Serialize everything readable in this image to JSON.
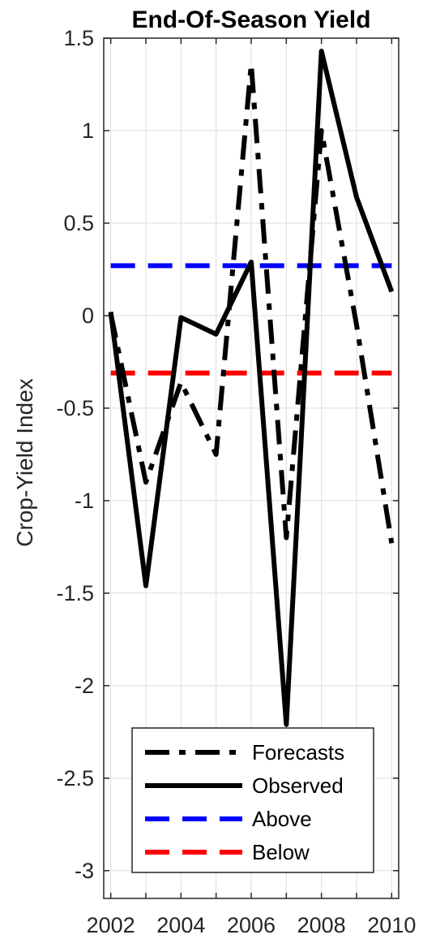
{
  "chart_data": {
    "type": "line",
    "title": "End-Of-Season Yield",
    "xlabel": "",
    "ylabel": "Crop-Yield Index",
    "xlim": [
      2001.8,
      2010.2
    ],
    "ylim": [
      -3.15,
      1.5
    ],
    "xticks": [
      2002,
      2003,
      2004,
      2005,
      2006,
      2007,
      2008,
      2009,
      2010
    ],
    "xtick_labels": [
      "2002",
      "",
      "2004",
      "",
      "2006",
      "",
      "2008",
      "",
      "2010"
    ],
    "yticks": [
      -3,
      -2.5,
      -2,
      -1.5,
      -1,
      -0.5,
      0,
      0.5,
      1,
      1.5
    ],
    "ytick_labels": [
      "-3",
      "-2.5",
      "-2",
      "-1.5",
      "-1",
      "-0.5",
      "0",
      "0.5",
      "1",
      "1.5"
    ],
    "grid": true,
    "legend_position": "bottom",
    "x": [
      2002,
      2003,
      2004,
      2005,
      2006,
      2007,
      2008,
      2009,
      2010
    ],
    "series": [
      {
        "name": "Forecasts",
        "style": "dashdot",
        "color": "#000000",
        "values": [
          0.01,
          -0.9,
          -0.36,
          -0.75,
          1.36,
          -1.2,
          1.0,
          -0.05,
          -1.23
        ]
      },
      {
        "name": "Observed",
        "style": "solid",
        "color": "#000000",
        "values": [
          0.02,
          -1.46,
          -0.01,
          -0.1,
          0.29,
          -2.21,
          1.43,
          0.64,
          0.13
        ]
      },
      {
        "name": "Above",
        "style": "dashed",
        "color": "#0000ff",
        "values": [
          0.27,
          0.27,
          0.27,
          0.27,
          0.27,
          0.27,
          0.27,
          0.27,
          0.27
        ]
      },
      {
        "name": "Below",
        "style": "dashed",
        "color": "#ff0000",
        "values": [
          -0.31,
          -0.31,
          -0.31,
          -0.31,
          -0.31,
          -0.31,
          -0.31,
          -0.31,
          -0.31
        ]
      }
    ]
  }
}
